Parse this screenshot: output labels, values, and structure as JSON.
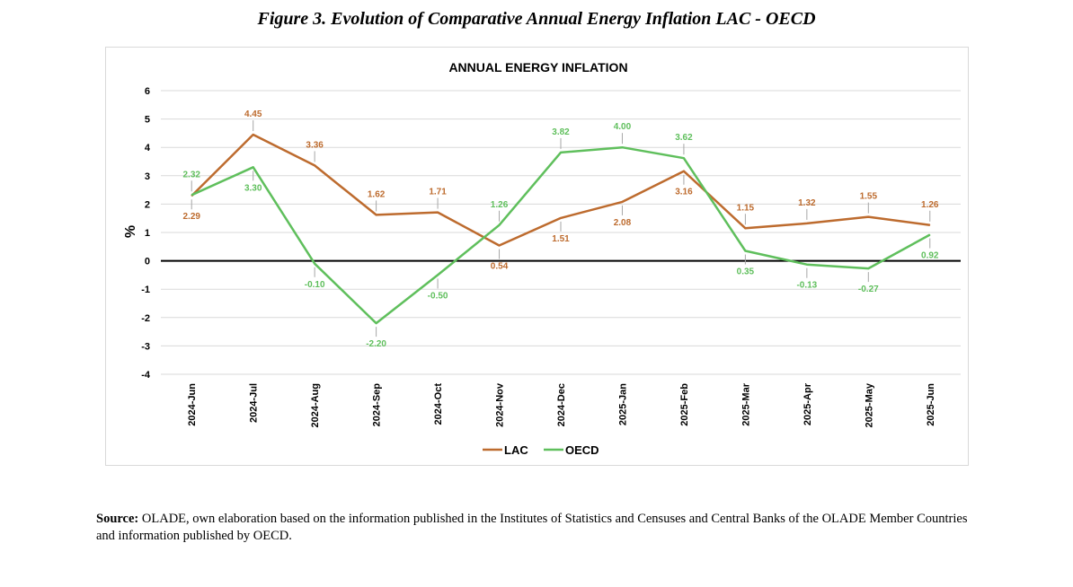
{
  "figure_title": "Figure 3. Evolution of Comparative Annual Energy Inflation LAC - OECD",
  "source": {
    "label": "Source:",
    "text": "OLADE, own elaboration based on the information published in the Institutes of Statistics and Censuses and Central Banks of the OLADE Member Countries and information published by OECD."
  },
  "chart_data": {
    "type": "line",
    "title": "ANNUAL ENERGY INFLATION",
    "ylabel": "%",
    "xlabel": "",
    "ylim": [
      -4,
      6
    ],
    "yticks": [
      -4,
      -3,
      -2,
      -1,
      0,
      1,
      2,
      3,
      4,
      5,
      6
    ],
    "grid": true,
    "legend": "bottom",
    "categories": [
      "2024-Jun",
      "2024-Jul",
      "2024-Aug",
      "2024-Sep",
      "2024-Oct",
      "2024-Nov",
      "2024-Dec",
      "2025-Jan",
      "2025-Feb",
      "2025-Mar",
      "2025-Apr",
      "2025-May",
      "2025-Jun"
    ],
    "series": [
      {
        "name": "LAC",
        "color": "#bd6b2e",
        "values": [
          2.29,
          4.45,
          3.36,
          1.62,
          1.71,
          0.54,
          1.51,
          2.08,
          3.16,
          1.15,
          1.32,
          1.55,
          1.26
        ],
        "labels": [
          "2.29",
          "4.45",
          "3.36",
          "1.62",
          "1.71",
          "0.54",
          "1.51",
          "2.08",
          "3.16",
          "1.15",
          "1.32",
          "1.55",
          "1.26"
        ]
      },
      {
        "name": "OECD",
        "color": "#5fbf5c",
        "values": [
          2.32,
          3.3,
          -0.1,
          -2.2,
          -0.5,
          1.26,
          3.82,
          4.0,
          3.62,
          0.35,
          -0.13,
          -0.27,
          0.92
        ],
        "labels": [
          "2.32",
          "3.30",
          "-0.10",
          "-2.20",
          "-0.50",
          "1.26",
          "3.82",
          "4.00",
          "3.62",
          "0.35",
          "-0.13",
          "-0.27",
          "0.92"
        ]
      }
    ]
  }
}
